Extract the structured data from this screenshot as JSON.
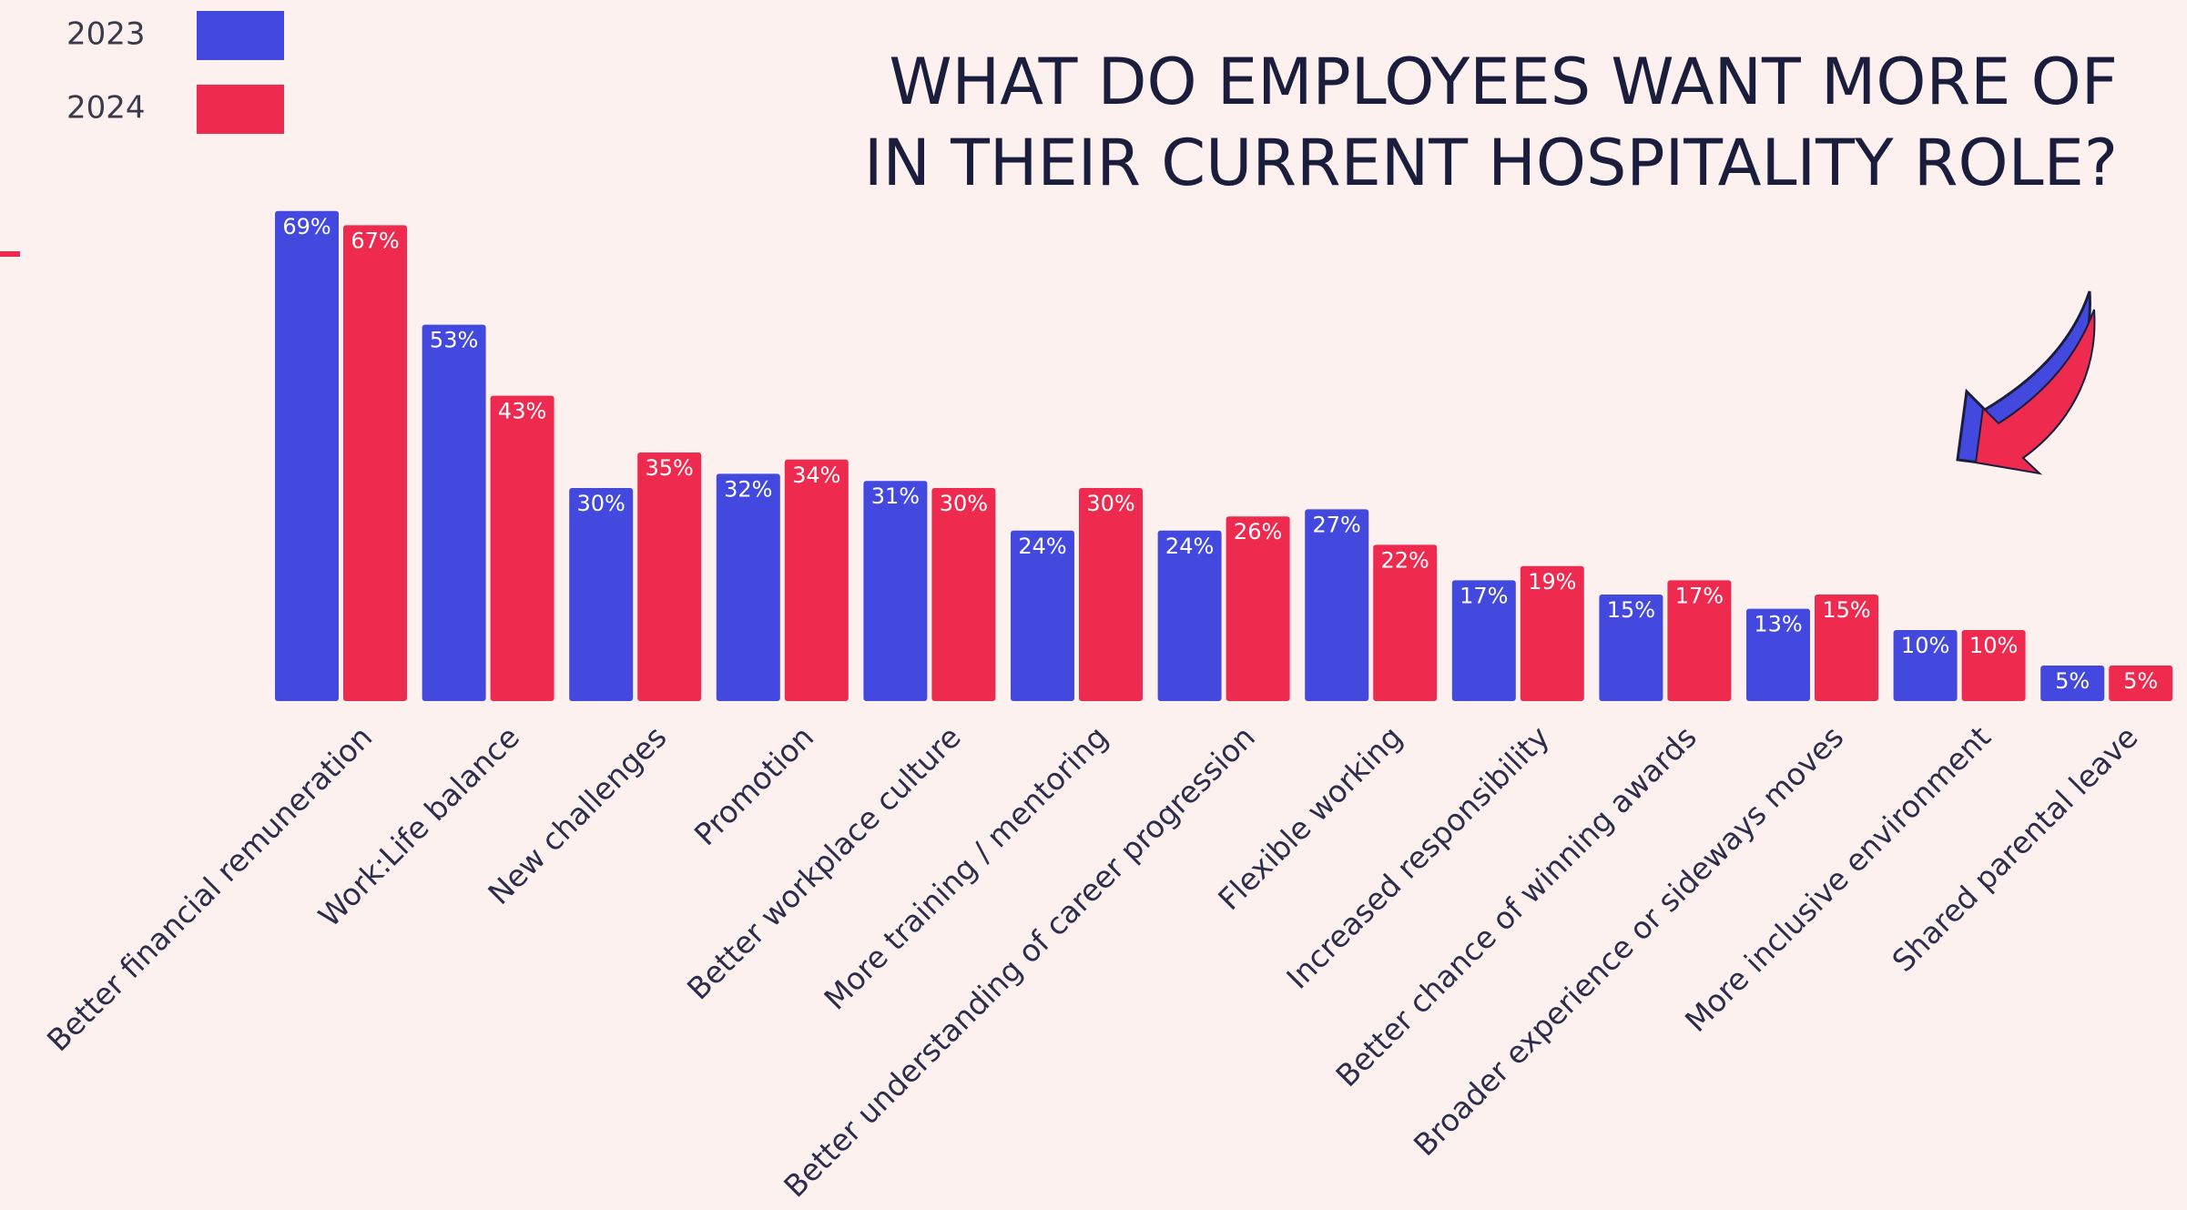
{
  "chart_data": {
    "type": "bar",
    "title": [
      "WHAT DO EMPLOYEES WANT MORE OF",
      "IN THEIR CURRENT HOSPITALITY ROLE?"
    ],
    "categories": [
      "Better financial remuneration",
      "Work:Life balance",
      "New challenges",
      "Promotion",
      "Better workplace culture",
      "More training / mentoring",
      "Better understanding of career progression",
      "Flexible working",
      "Increased responsibility",
      "Better chance of winning awards",
      "Broader experience or sideways moves",
      "More inclusive environment",
      "Shared parental leave"
    ],
    "series": [
      {
        "name": "2023",
        "color": "#4349de",
        "values": [
          69,
          53,
          30,
          32,
          31,
          24,
          24,
          27,
          17,
          15,
          13,
          10,
          5
        ],
        "value_labels": [
          "69%",
          "53%",
          "30%",
          "32%",
          "31%",
          "24%",
          "24%",
          "27%",
          "17%",
          "15%",
          "13%",
          "10%",
          "5%"
        ]
      },
      {
        "name": "2024",
        "color": "#ee2a4f",
        "values": [
          67,
          43,
          35,
          34,
          30,
          30,
          26,
          22,
          19,
          17,
          15,
          10,
          5
        ],
        "value_labels": [
          "67%",
          "43%",
          "35%",
          "34%",
          "30%",
          "30%",
          "26%",
          "22%",
          "19%",
          "17%",
          "15%",
          "10%",
          "5%"
        ]
      }
    ]
  }
}
